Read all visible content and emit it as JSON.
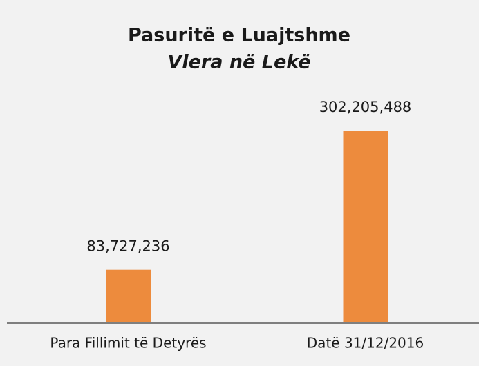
{
  "chart_data": {
    "type": "bar",
    "title": "Pasuritë e Luajtshme",
    "subtitle": "Vlera në Lekë",
    "categories": [
      "Para Fillimit të Detyrës",
      "Datë 31/12/2016"
    ],
    "values": [
      83727236,
      302205488
    ],
    "value_labels": [
      "83,727,236",
      "302,205,488"
    ],
    "color": "#ed8b3d"
  }
}
